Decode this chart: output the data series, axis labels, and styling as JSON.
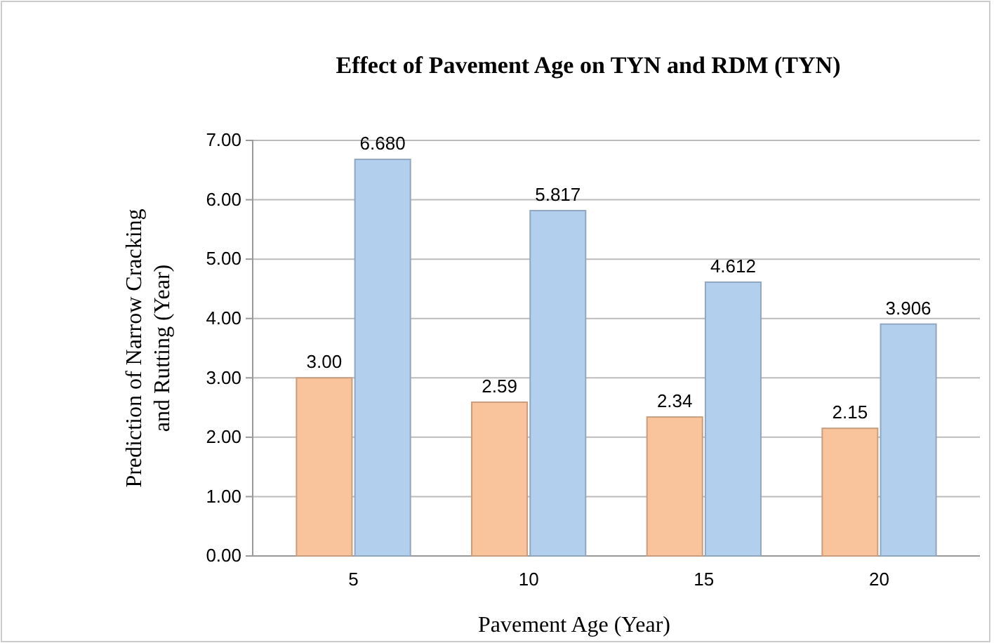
{
  "chart_data": {
    "type": "bar",
    "title": "Effect of Pavement Age on TYN and RDM (TYN)",
    "xlabel": "Pavement Age (Year)",
    "ylabel": "Prediction of  Narrow Cracking and Rutting (Year)",
    "categories": [
      "5",
      "10",
      "15",
      "20"
    ],
    "series": [
      {
        "color": "#f9c39c",
        "values": [
          3.0,
          2.59,
          2.34,
          2.15
        ],
        "value_labels": [
          "3.00",
          "2.59",
          "2.34",
          "2.15"
        ]
      },
      {
        "color": "#b3cfee",
        "values": [
          6.68,
          5.817,
          4.612,
          3.906
        ],
        "value_labels": [
          "6.680",
          "5.817",
          "4.612",
          "3.906"
        ]
      }
    ],
    "ylim": [
      0,
      7
    ],
    "yticks": [
      {
        "value": 0,
        "label": "0.00"
      },
      {
        "value": 1,
        "label": "1.00"
      },
      {
        "value": 2,
        "label": "2.00"
      },
      {
        "value": 3,
        "label": "3.00"
      },
      {
        "value": 4,
        "label": "4.00"
      },
      {
        "value": 5,
        "label": "5.00"
      },
      {
        "value": 6,
        "label": "6.00"
      },
      {
        "value": 7,
        "label": "7.00"
      }
    ],
    "grid": "y"
  }
}
